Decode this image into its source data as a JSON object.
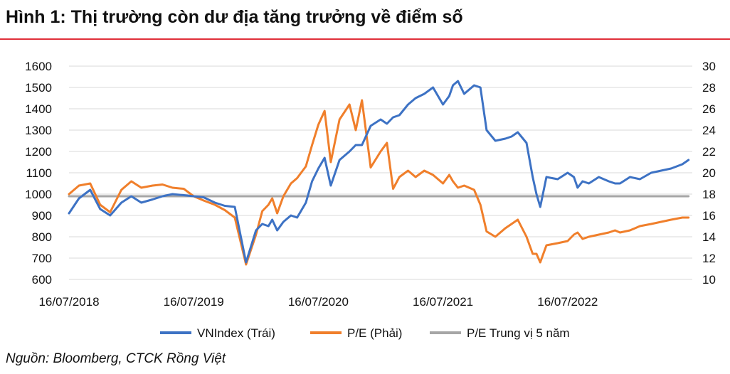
{
  "header": {
    "title": "Hình 1: Thị trường còn dư địa tăng trưởng về điểm số"
  },
  "footer": {
    "source": "Nguồn: Bloomberg, CTCK Rồng Việt"
  },
  "colors": {
    "vnindex": "#3d72c4",
    "pe": "#f07f2b",
    "pe_median": "#a6a6a6",
    "accent_rule": "#e0303a"
  },
  "chart_data": {
    "type": "line",
    "title": "",
    "xlabel": "",
    "ylabel": "",
    "y_left": {
      "ticks": [
        "600",
        "700",
        "800",
        "900",
        "1000",
        "1100",
        "1200",
        "1300",
        "1400",
        "1500",
        "1600"
      ],
      "ylim": [
        600,
        1600
      ]
    },
    "y_right": {
      "ticks": [
        "10",
        "12",
        "14",
        "16",
        "18",
        "20",
        "22",
        "24",
        "26",
        "28",
        "30"
      ],
      "ylim": [
        10,
        30
      ]
    },
    "x_ticks": [
      "16/07/2018",
      "16/07/2019",
      "16/07/2020",
      "16/07/2021",
      "16/07/2022"
    ],
    "x_tick_pos": [
      0,
      1,
      2,
      3,
      4
    ],
    "xlim": [
      0,
      5
    ],
    "grid": true,
    "legend_position": "bottom",
    "series": [
      {
        "name": "VNIndex (Trái)",
        "axis": "left",
        "color": "#3d72c4",
        "x": [
          0,
          0.08,
          0.17,
          0.25,
          0.33,
          0.42,
          0.5,
          0.58,
          0.67,
          0.75,
          0.83,
          0.92,
          1.0,
          1.08,
          1.17,
          1.25,
          1.33,
          1.42,
          1.5,
          1.55,
          1.6,
          1.63,
          1.67,
          1.72,
          1.78,
          1.83,
          1.9,
          1.95,
          2.0,
          2.05,
          2.1,
          2.17,
          2.25,
          2.3,
          2.35,
          2.42,
          2.5,
          2.55,
          2.6,
          2.65,
          2.72,
          2.78,
          2.85,
          2.92,
          3.0,
          3.05,
          3.08,
          3.12,
          3.17,
          3.25,
          3.3,
          3.35,
          3.42,
          3.5,
          3.55,
          3.6,
          3.67,
          3.72,
          3.75,
          3.78,
          3.83,
          3.92,
          4.0,
          4.05,
          4.08,
          4.12,
          4.17,
          4.25,
          4.33,
          4.38,
          4.42,
          4.5,
          4.58,
          4.67,
          4.75,
          4.83,
          4.92,
          4.97
        ],
        "values": [
          910,
          980,
          1020,
          930,
          900,
          960,
          990,
          960,
          975,
          990,
          1000,
          995,
          990,
          985,
          960,
          945,
          940,
          680,
          830,
          860,
          850,
          880,
          830,
          870,
          900,
          890,
          960,
          1060,
          1120,
          1170,
          1040,
          1160,
          1200,
          1230,
          1230,
          1320,
          1350,
          1330,
          1360,
          1370,
          1420,
          1450,
          1470,
          1500,
          1420,
          1460,
          1510,
          1530,
          1470,
          1510,
          1500,
          1300,
          1250,
          1260,
          1270,
          1290,
          1240,
          1080,
          1000,
          940,
          1080,
          1070,
          1100,
          1080,
          1030,
          1060,
          1050,
          1080,
          1060,
          1050,
          1050,
          1080,
          1070,
          1100,
          1110,
          1120,
          1140,
          1160
        ]
      },
      {
        "name": "P/E (Phải)",
        "axis": "right",
        "color": "#f07f2b",
        "x": [
          0,
          0.08,
          0.17,
          0.25,
          0.33,
          0.42,
          0.5,
          0.58,
          0.67,
          0.75,
          0.83,
          0.92,
          1.0,
          1.08,
          1.17,
          1.25,
          1.33,
          1.42,
          1.5,
          1.55,
          1.6,
          1.63,
          1.67,
          1.72,
          1.78,
          1.83,
          1.9,
          1.95,
          2.0,
          2.05,
          2.1,
          2.17,
          2.25,
          2.3,
          2.35,
          2.42,
          2.5,
          2.55,
          2.6,
          2.65,
          2.72,
          2.78,
          2.85,
          2.92,
          3.0,
          3.05,
          3.08,
          3.12,
          3.17,
          3.25,
          3.3,
          3.35,
          3.42,
          3.5,
          3.55,
          3.6,
          3.67,
          3.72,
          3.75,
          3.78,
          3.83,
          3.92,
          4.0,
          4.05,
          4.08,
          4.12,
          4.17,
          4.25,
          4.33,
          4.38,
          4.42,
          4.5,
          4.58,
          4.67,
          4.75,
          4.83,
          4.92,
          4.97
        ],
        "values": [
          18.0,
          18.8,
          19.0,
          17.0,
          16.3,
          18.4,
          19.2,
          18.6,
          18.8,
          18.9,
          18.6,
          18.5,
          17.8,
          17.4,
          17.0,
          16.5,
          15.8,
          11.4,
          14.2,
          16.4,
          17.0,
          17.6,
          16.2,
          17.8,
          19.0,
          19.5,
          20.6,
          22.6,
          24.5,
          25.8,
          21.0,
          25.0,
          26.4,
          24.0,
          26.8,
          20.5,
          22.0,
          22.8,
          18.5,
          19.6,
          20.2,
          19.6,
          20.2,
          19.8,
          19.0,
          19.8,
          19.2,
          18.6,
          18.8,
          18.4,
          17.0,
          14.5,
          14.0,
          14.8,
          15.2,
          15.6,
          14.0,
          12.4,
          12.4,
          11.6,
          13.2,
          13.4,
          13.6,
          14.2,
          14.4,
          13.8,
          14.0,
          14.2,
          14.4,
          14.6,
          14.4,
          14.6,
          15.0,
          15.2,
          15.4,
          15.6,
          15.8,
          15.8
        ]
      },
      {
        "name": "P/E Trung vị 5 năm",
        "axis": "right",
        "color": "#a6a6a6",
        "x": [
          0,
          4.97
        ],
        "values": [
          17.8,
          17.8
        ]
      }
    ]
  }
}
